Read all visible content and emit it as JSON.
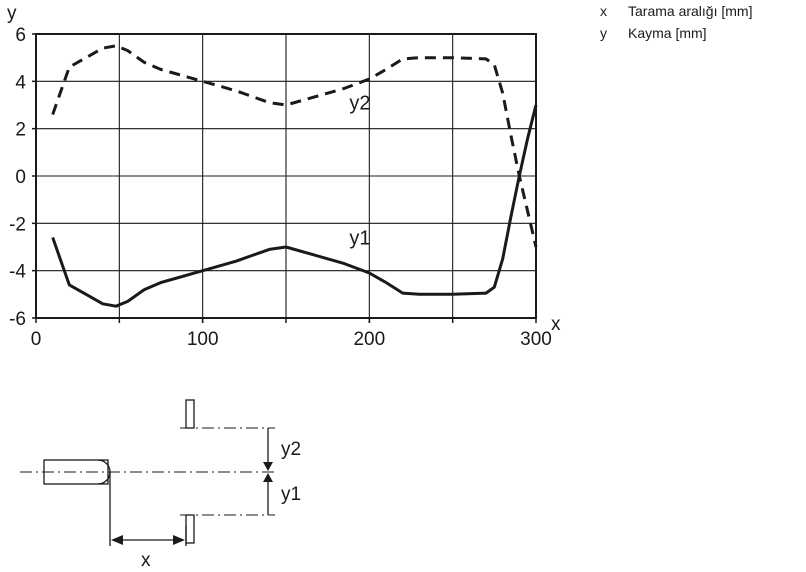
{
  "legend": [
    {
      "key": "x",
      "text": "Tarama aralığı [mm]"
    },
    {
      "key": "y",
      "text": "Kayma [mm]"
    }
  ],
  "chart_data": {
    "type": "line",
    "xlabel": "x",
    "ylabel": "y",
    "xlim": [
      0,
      300
    ],
    "ylim": [
      -6,
      6
    ],
    "xticks": [
      0,
      100,
      200,
      300
    ],
    "yticks": [
      -6,
      -4,
      -2,
      0,
      2,
      4,
      6
    ],
    "grid": true,
    "series": [
      {
        "name": "y1",
        "style": "solid",
        "points": [
          [
            10,
            -2.6
          ],
          [
            15,
            -3.6
          ],
          [
            20,
            -4.6
          ],
          [
            30,
            -5.0
          ],
          [
            40,
            -5.4
          ],
          [
            48,
            -5.5
          ],
          [
            55,
            -5.3
          ],
          [
            65,
            -4.8
          ],
          [
            75,
            -4.5
          ],
          [
            100,
            -4.0
          ],
          [
            120,
            -3.6
          ],
          [
            140,
            -3.1
          ],
          [
            150,
            -3.0
          ],
          [
            165,
            -3.3
          ],
          [
            185,
            -3.7
          ],
          [
            200,
            -4.1
          ],
          [
            210,
            -4.5
          ],
          [
            220,
            -4.95
          ],
          [
            230,
            -5.0
          ],
          [
            250,
            -5.0
          ],
          [
            270,
            -4.95
          ],
          [
            275,
            -4.7
          ],
          [
            280,
            -3.5
          ],
          [
            285,
            -1.7
          ],
          [
            290,
            0.0
          ],
          [
            295,
            1.6
          ],
          [
            300,
            3.0
          ]
        ]
      },
      {
        "name": "y2",
        "style": "dashed",
        "points": [
          [
            10,
            2.6
          ],
          [
            15,
            3.6
          ],
          [
            20,
            4.6
          ],
          [
            30,
            5.0
          ],
          [
            40,
            5.4
          ],
          [
            48,
            5.5
          ],
          [
            55,
            5.3
          ],
          [
            65,
            4.8
          ],
          [
            75,
            4.5
          ],
          [
            100,
            4.0
          ],
          [
            120,
            3.6
          ],
          [
            140,
            3.1
          ],
          [
            150,
            3.0
          ],
          [
            165,
            3.3
          ],
          [
            185,
            3.7
          ],
          [
            200,
            4.1
          ],
          [
            210,
            4.5
          ],
          [
            220,
            4.95
          ],
          [
            230,
            5.0
          ],
          [
            250,
            5.0
          ],
          [
            270,
            4.95
          ],
          [
            275,
            4.7
          ],
          [
            280,
            3.5
          ],
          [
            285,
            1.7
          ],
          [
            290,
            0.0
          ],
          [
            295,
            -1.5
          ],
          [
            300,
            -3.0
          ]
        ]
      }
    ],
    "series_labels": [
      {
        "text": "y1",
        "x": 188,
        "y": -2.9
      },
      {
        "text": "y2",
        "x": 188,
        "y": 2.8
      }
    ]
  },
  "diagram": {
    "x_label": "x",
    "y1_label": "y1",
    "y2_label": "y2"
  }
}
